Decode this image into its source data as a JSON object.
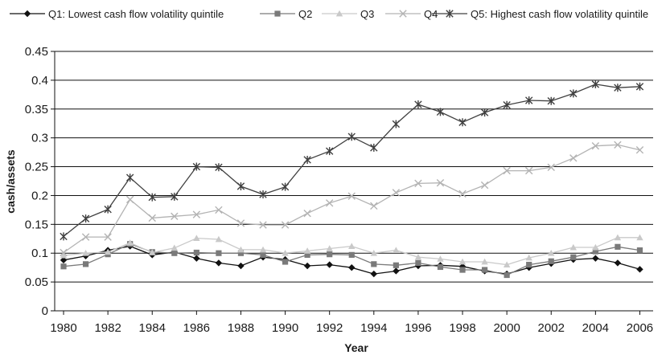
{
  "chart_data": {
    "type": "line",
    "title": "",
    "xlabel": "Year",
    "ylabel": "cash/assets",
    "xlim": [
      1979.6,
      2006.6
    ],
    "ylim": [
      0,
      0.45
    ],
    "grid": "horizontal",
    "legend_position": "top",
    "x": [
      1980,
      1981,
      1982,
      1983,
      1984,
      1985,
      1986,
      1987,
      1988,
      1989,
      1990,
      1991,
      1992,
      1993,
      1994,
      1995,
      1996,
      1997,
      1998,
      1999,
      2000,
      2001,
      2002,
      2003,
      2004,
      2005,
      2006
    ],
    "x_ticks": [
      "1980",
      "1982",
      "1984",
      "1986",
      "1988",
      "1990",
      "1992",
      "1994",
      "1996",
      "1998",
      "2000",
      "2002",
      "2004",
      "2006"
    ],
    "y_ticks": [
      "0",
      "0.05",
      "0.1",
      "0.15",
      "0.2",
      "0.25",
      "0.3",
      "0.35",
      "0.4",
      "0.45"
    ],
    "series": [
      {
        "name": "Q1: Lowest cash flow volatility quintile",
        "marker": "diamond",
        "color": "#111111",
        "values": [
          0.088,
          0.095,
          0.105,
          0.112,
          0.097,
          0.102,
          0.091,
          0.083,
          0.078,
          0.093,
          0.089,
          0.078,
          0.08,
          0.075,
          0.064,
          0.069,
          0.078,
          0.079,
          0.077,
          0.069,
          0.064,
          0.075,
          0.082,
          0.089,
          0.091,
          0.083,
          0.072
        ]
      },
      {
        "name": "Q2",
        "marker": "square",
        "color": "#7a7a7a",
        "values": [
          0.077,
          0.081,
          0.098,
          0.116,
          0.102,
          0.1,
          0.101,
          0.1,
          0.1,
          0.097,
          0.085,
          0.097,
          0.098,
          0.097,
          0.081,
          0.079,
          0.083,
          0.076,
          0.071,
          0.071,
          0.062,
          0.08,
          0.086,
          0.093,
          0.103,
          0.111,
          0.105
        ]
      },
      {
        "name": "Q3",
        "marker": "triangle",
        "color": "#c9c9c9",
        "values": [
          0.096,
          0.1,
          0.102,
          0.118,
          0.101,
          0.109,
          0.126,
          0.124,
          0.106,
          0.106,
          0.1,
          0.104,
          0.108,
          0.112,
          0.1,
          0.105,
          0.093,
          0.09,
          0.085,
          0.085,
          0.08,
          0.092,
          0.1,
          0.11,
          0.11,
          0.127,
          0.127
        ]
      },
      {
        "name": "Q4",
        "marker": "x",
        "color": "#b3b3b3",
        "values": [
          0.101,
          0.128,
          0.128,
          0.193,
          0.161,
          0.164,
          0.167,
          0.175,
          0.152,
          0.149,
          0.149,
          0.169,
          0.187,
          0.199,
          0.182,
          0.205,
          0.221,
          0.222,
          0.203,
          0.218,
          0.243,
          0.243,
          0.249,
          0.265,
          0.286,
          0.288,
          0.279
        ]
      },
      {
        "name": "Q5: Highest cash flow volatility quintile",
        "marker": "star",
        "color": "#404040",
        "values": [
          0.129,
          0.16,
          0.176,
          0.231,
          0.197,
          0.198,
          0.25,
          0.249,
          0.216,
          0.202,
          0.215,
          0.262,
          0.277,
          0.302,
          0.283,
          0.324,
          0.358,
          0.345,
          0.327,
          0.344,
          0.357,
          0.365,
          0.364,
          0.377,
          0.393,
          0.387,
          0.389
        ]
      }
    ]
  }
}
